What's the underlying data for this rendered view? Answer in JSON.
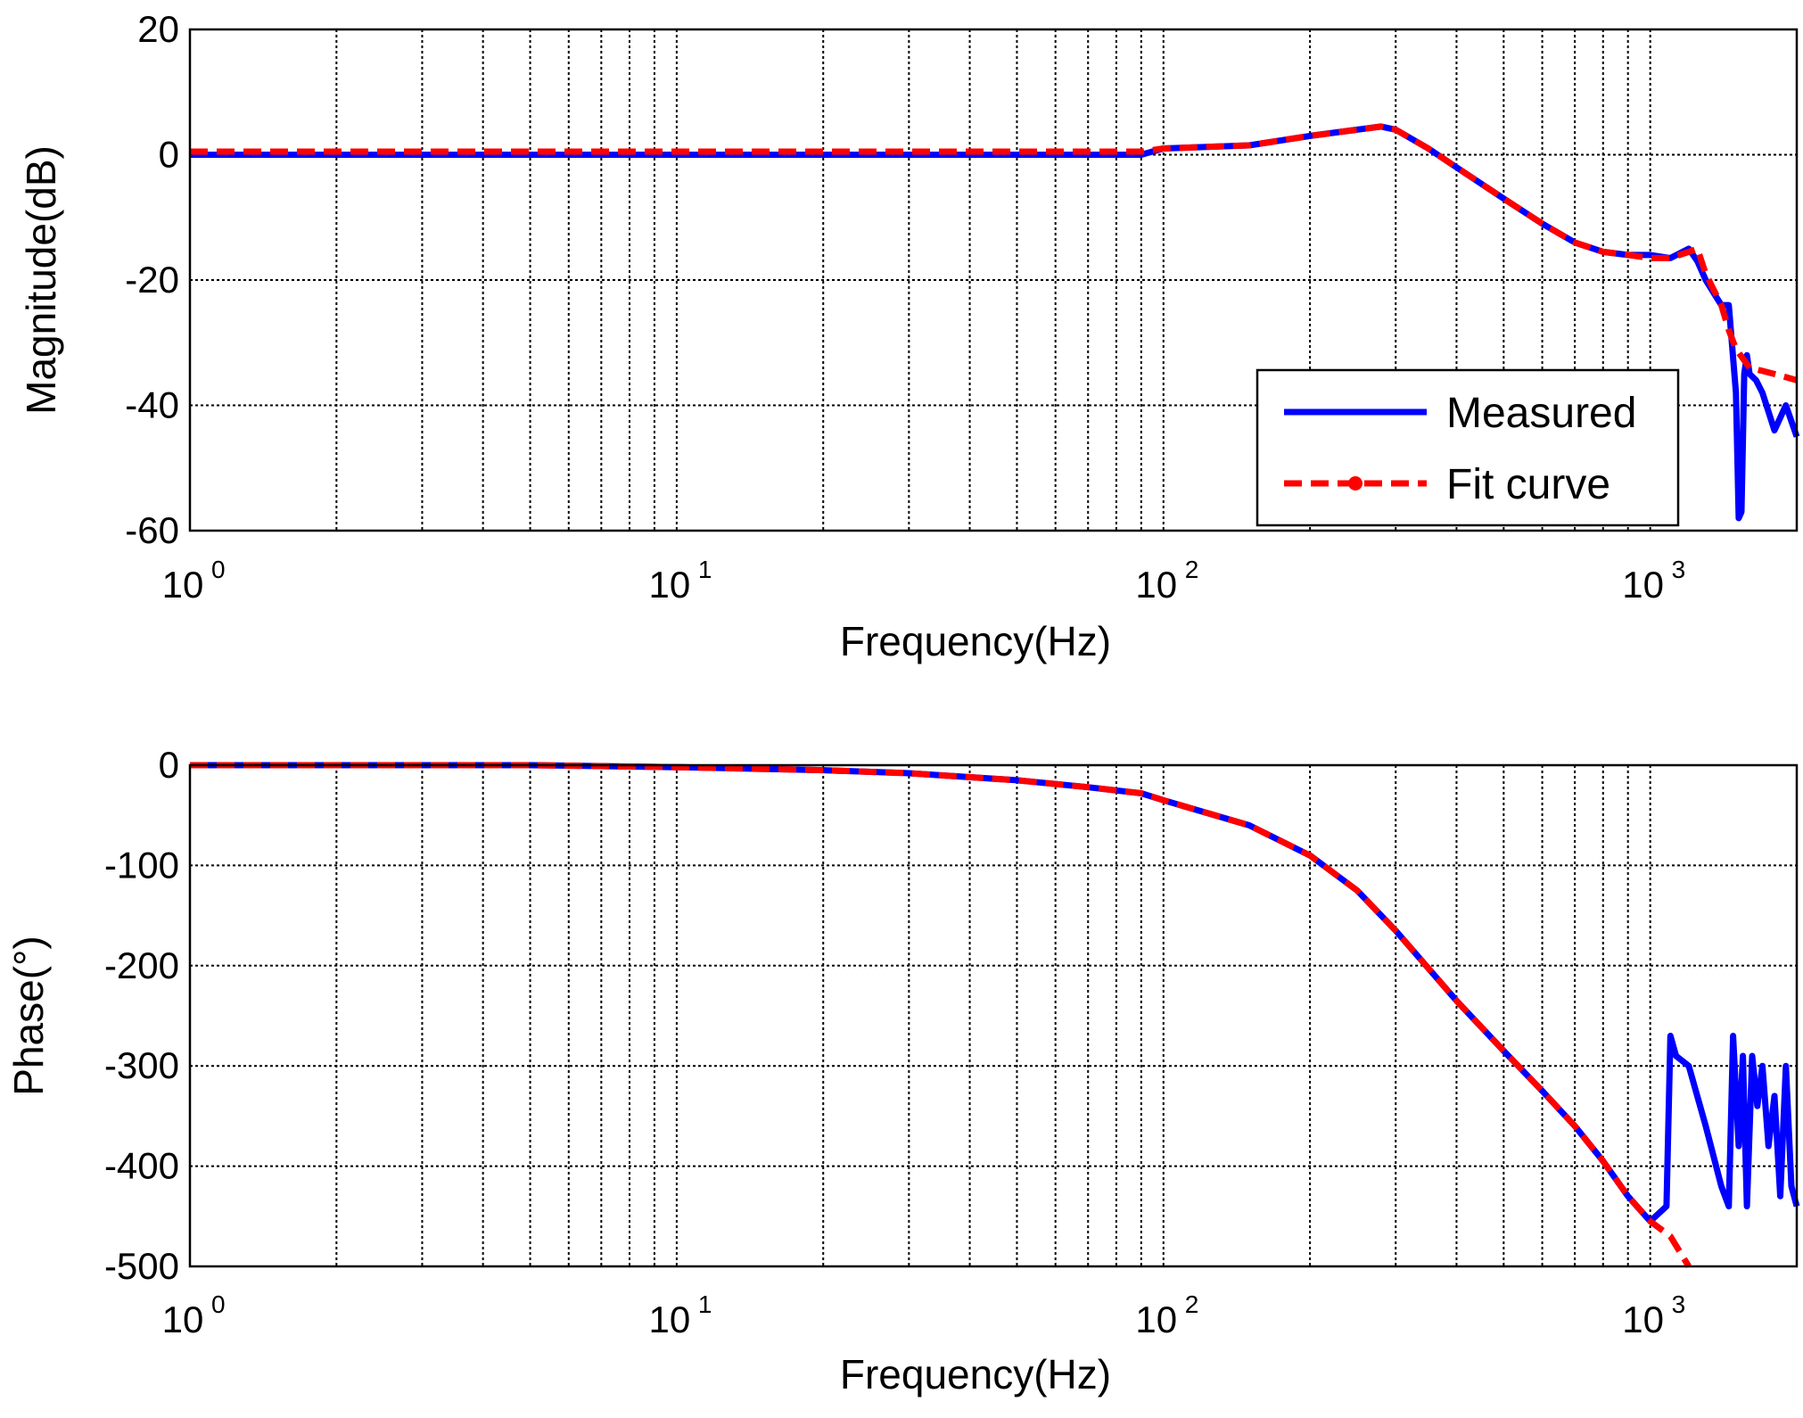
{
  "chart_data": [
    {
      "type": "line",
      "xlabel": "Frequency(Hz)",
      "ylabel": "Magnitude(dB)",
      "xscale": "log",
      "xlim": [
        1,
        2000
      ],
      "ylim": [
        -60,
        20
      ],
      "yticks": [
        20,
        0,
        -20,
        -40,
        -60
      ],
      "xtick_labels": [
        {
          "base": "10",
          "exp": "0"
        },
        {
          "base": "10",
          "exp": "1"
        },
        {
          "base": "10",
          "exp": "2"
        },
        {
          "base": "10",
          "exp": "3"
        }
      ],
      "grid": true,
      "legend": {
        "placement": "bottom-right",
        "entries": [
          "Measured",
          "Fit curve"
        ]
      },
      "series": [
        {
          "name": "Measured",
          "color": "#0000ff",
          "style": "solid",
          "x": [
            1,
            2,
            5,
            10,
            20,
            50,
            80,
            90,
            100,
            150,
            200,
            250,
            280,
            300,
            350,
            400,
            500,
            600,
            700,
            800,
            900,
            1000,
            1100,
            1200,
            1250,
            1300,
            1400,
            1450,
            1500,
            1520,
            1540,
            1560,
            1580,
            1600,
            1650,
            1700,
            1800,
            1900,
            2000
          ],
          "y": [
            0,
            0,
            0,
            0,
            0,
            0,
            0,
            0,
            1,
            1.5,
            3,
            4,
            4.5,
            4,
            1,
            -2,
            -7,
            -11,
            -14,
            -15.5,
            -16,
            -16,
            -16.5,
            -15,
            -17,
            -20,
            -24,
            -24,
            -38,
            -58,
            -57,
            -35,
            -32,
            -35,
            -36,
            -38,
            -44,
            -40,
            -45
          ]
        },
        {
          "name": "Fit curve",
          "color": "#ff0000",
          "style": "dashed",
          "x": [
            1,
            2,
            5,
            10,
            20,
            50,
            80,
            90,
            100,
            150,
            200,
            250,
            280,
            300,
            350,
            400,
            500,
            600,
            700,
            800,
            900,
            1000,
            1100,
            1200,
            1250,
            1300,
            1400,
            1450,
            1500,
            1600,
            1700,
            1800,
            1900,
            2000
          ],
          "y": [
            0.5,
            0.5,
            0.5,
            0.5,
            0.5,
            0.5,
            0.5,
            0.5,
            1,
            1.5,
            3,
            4,
            4.5,
            4,
            1,
            -2,
            -7,
            -11,
            -14,
            -15.5,
            -16,
            -16.5,
            -16.5,
            -15.5,
            -15,
            -19,
            -24,
            -28,
            -31,
            -34,
            -34.5,
            -35,
            -35.5,
            -36
          ]
        }
      ]
    },
    {
      "type": "line",
      "xlabel": "Frequency(Hz)",
      "ylabel": "Phase(°)",
      "xscale": "log",
      "xlim": [
        1,
        2000
      ],
      "ylim": [
        -500,
        0
      ],
      "yticks": [
        0,
        -100,
        -200,
        -300,
        -400,
        -500
      ],
      "xtick_labels": [
        {
          "base": "10",
          "exp": "0"
        },
        {
          "base": "10",
          "exp": "1"
        },
        {
          "base": "10",
          "exp": "2"
        },
        {
          "base": "10",
          "exp": "3"
        }
      ],
      "grid": true,
      "series": [
        {
          "name": "Measured",
          "color": "#0000ff",
          "style": "solid",
          "x": [
            1,
            5,
            10,
            20,
            30,
            50,
            70,
            90,
            100,
            150,
            200,
            250,
            300,
            400,
            500,
            600,
            700,
            800,
            900,
            1000,
            1080,
            1100,
            1130,
            1200,
            1300,
            1400,
            1450,
            1480,
            1520,
            1550,
            1580,
            1620,
            1660,
            1700,
            1750,
            1800,
            1850,
            1900,
            1950,
            2000
          ],
          "y": [
            0,
            0,
            -2,
            -5,
            -8,
            -15,
            -22,
            -28,
            -35,
            -60,
            -90,
            -125,
            -165,
            -235,
            -285,
            -325,
            -360,
            -395,
            -430,
            -455,
            -440,
            -270,
            -290,
            -300,
            -360,
            -420,
            -440,
            -270,
            -380,
            -290,
            -440,
            -290,
            -340,
            -300,
            -380,
            -330,
            -430,
            -300,
            -420,
            -440
          ]
        },
        {
          "name": "Fit curve",
          "color": "#ff0000",
          "style": "dashed",
          "x": [
            1,
            5,
            10,
            20,
            30,
            50,
            70,
            90,
            100,
            150,
            200,
            250,
            300,
            400,
            500,
            600,
            700,
            800,
            900,
            1000,
            1100,
            1200
          ],
          "y": [
            0,
            0,
            -2,
            -5,
            -8,
            -15,
            -22,
            -28,
            -35,
            -60,
            -90,
            -125,
            -165,
            -235,
            -285,
            -325,
            -360,
            -395,
            -430,
            -455,
            -470,
            -500
          ]
        }
      ]
    }
  ]
}
